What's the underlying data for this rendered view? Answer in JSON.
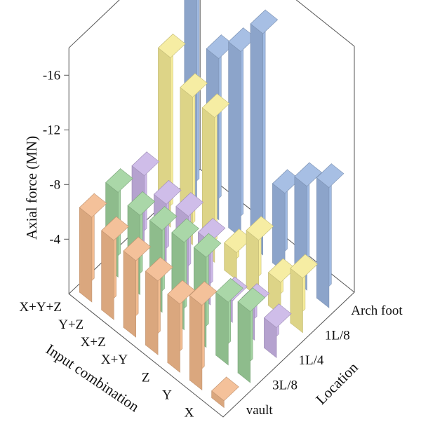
{
  "chart_data": {
    "type": "bar3d",
    "z_axis_label": "Axial force (MN)",
    "z_ticks": [
      "-16",
      "-12",
      "-8",
      "-4"
    ],
    "z_tick_values": [
      16,
      12,
      8,
      4
    ],
    "zlim": [
      0,
      18
    ],
    "input_axis_label": "Input combination",
    "location_axis_label": "Location",
    "input_combinations": [
      "X",
      "Y",
      "Z",
      "X+Y",
      "X+Z",
      "Y+Z",
      "X+Y+Z"
    ],
    "locations": [
      "vault",
      "3L/8",
      "1L/4",
      "1L/8",
      "Arch foot"
    ],
    "series": [
      {
        "location": "vault",
        "color": "#f2b98c",
        "values": [
          0.5,
          6.2,
          5.0,
          5.4,
          5.6,
          5.8,
          6.2
        ]
      },
      {
        "location": "3L/8",
        "color": "#9ed19c",
        "values": [
          5.2,
          4.6,
          6.6,
          6.4,
          6.0,
          5.8,
          6.2
        ]
      },
      {
        "location": "1L/4",
        "color": "#c9b4e6",
        "values": [
          2.2,
          2.4,
          1.6,
          4.6,
          5.2,
          4.8,
          5.6
        ]
      },
      {
        "location": "1L/8",
        "color": "#f5eb96",
        "values": [
          4.0,
          2.4,
          4.2,
          2.0,
          10.6,
          10.8,
          12.4
        ]
      },
      {
        "location": "Arch foot",
        "color": "#9bb6e0",
        "values": [
          8.8,
          7.6,
          5.8,
          16.2,
          13.6,
          11.8,
          18.4
        ]
      }
    ]
  }
}
